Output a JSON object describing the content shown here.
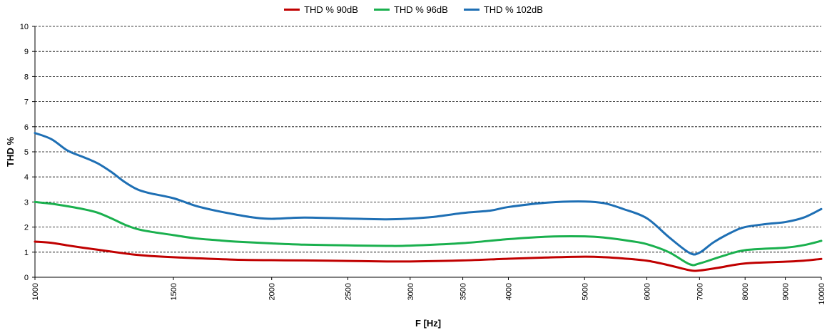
{
  "chart_data": {
    "type": "line",
    "xlabel": "F [Hz]",
    "ylabel": "THD %",
    "x_scale": "log",
    "xlim": [
      1000,
      10000
    ],
    "ylim": [
      0,
      10
    ],
    "yticks": [
      0,
      1,
      2,
      3,
      4,
      5,
      6,
      7,
      8,
      9,
      10
    ],
    "xticks": [
      1000,
      1500,
      2000,
      2500,
      3000,
      3500,
      4000,
      5000,
      6000,
      7000,
      8000,
      9000,
      10000
    ],
    "grid": "horizontal dashed",
    "legend_position": "top",
    "series": [
      {
        "name": "THD % 90dB",
        "color": "#c00000",
        "points": [
          [
            1000,
            1.42
          ],
          [
            1050,
            1.37
          ],
          [
            1100,
            1.27
          ],
          [
            1150,
            1.18
          ],
          [
            1200,
            1.1
          ],
          [
            1300,
            0.95
          ],
          [
            1350,
            0.89
          ],
          [
            1400,
            0.85
          ],
          [
            1500,
            0.8
          ],
          [
            1600,
            0.76
          ],
          [
            1800,
            0.7
          ],
          [
            2000,
            0.68
          ],
          [
            2200,
            0.67
          ],
          [
            2500,
            0.65
          ],
          [
            2800,
            0.63
          ],
          [
            3000,
            0.63
          ],
          [
            3500,
            0.67
          ],
          [
            4000,
            0.74
          ],
          [
            4500,
            0.79
          ],
          [
            5000,
            0.82
          ],
          [
            5300,
            0.8
          ],
          [
            5600,
            0.75
          ],
          [
            6000,
            0.66
          ],
          [
            6400,
            0.48
          ],
          [
            6800,
            0.28
          ],
          [
            7000,
            0.27
          ],
          [
            7400,
            0.38
          ],
          [
            8000,
            0.55
          ],
          [
            9000,
            0.62
          ],
          [
            9500,
            0.66
          ],
          [
            10000,
            0.73
          ]
        ]
      },
      {
        "name": "THD % 96dB",
        "color": "#1ab04e",
        "points": [
          [
            1000,
            3.0
          ],
          [
            1050,
            2.93
          ],
          [
            1100,
            2.83
          ],
          [
            1150,
            2.72
          ],
          [
            1200,
            2.58
          ],
          [
            1250,
            2.35
          ],
          [
            1300,
            2.1
          ],
          [
            1350,
            1.92
          ],
          [
            1400,
            1.82
          ],
          [
            1500,
            1.68
          ],
          [
            1600,
            1.55
          ],
          [
            1700,
            1.48
          ],
          [
            1800,
            1.42
          ],
          [
            2000,
            1.35
          ],
          [
            2200,
            1.3
          ],
          [
            2500,
            1.27
          ],
          [
            2800,
            1.25
          ],
          [
            3000,
            1.26
          ],
          [
            3500,
            1.36
          ],
          [
            4000,
            1.52
          ],
          [
            4500,
            1.62
          ],
          [
            5000,
            1.63
          ],
          [
            5300,
            1.58
          ],
          [
            5700,
            1.45
          ],
          [
            6000,
            1.32
          ],
          [
            6400,
            1.0
          ],
          [
            6800,
            0.52
          ],
          [
            7000,
            0.55
          ],
          [
            7500,
            0.85
          ],
          [
            8000,
            1.08
          ],
          [
            9000,
            1.18
          ],
          [
            9500,
            1.28
          ],
          [
            10000,
            1.45
          ]
        ]
      },
      {
        "name": "THD % 102dB",
        "color": "#1e6fb4",
        "points": [
          [
            1000,
            5.75
          ],
          [
            1050,
            5.5
          ],
          [
            1100,
            5.05
          ],
          [
            1150,
            4.8
          ],
          [
            1200,
            4.55
          ],
          [
            1250,
            4.2
          ],
          [
            1300,
            3.8
          ],
          [
            1350,
            3.5
          ],
          [
            1400,
            3.35
          ],
          [
            1500,
            3.15
          ],
          [
            1600,
            2.85
          ],
          [
            1700,
            2.65
          ],
          [
            1800,
            2.5
          ],
          [
            1900,
            2.38
          ],
          [
            2000,
            2.33
          ],
          [
            2200,
            2.38
          ],
          [
            2500,
            2.34
          ],
          [
            2800,
            2.31
          ],
          [
            3000,
            2.34
          ],
          [
            3200,
            2.4
          ],
          [
            3500,
            2.56
          ],
          [
            3800,
            2.66
          ],
          [
            4000,
            2.8
          ],
          [
            4500,
            2.98
          ],
          [
            5000,
            3.02
          ],
          [
            5300,
            2.95
          ],
          [
            5600,
            2.72
          ],
          [
            6000,
            2.35
          ],
          [
            6400,
            1.6
          ],
          [
            6800,
            0.97
          ],
          [
            7000,
            0.98
          ],
          [
            7300,
            1.4
          ],
          [
            7700,
            1.8
          ],
          [
            8000,
            2.0
          ],
          [
            8500,
            2.12
          ],
          [
            9000,
            2.2
          ],
          [
            9500,
            2.38
          ],
          [
            10000,
            2.72
          ]
        ]
      }
    ]
  }
}
